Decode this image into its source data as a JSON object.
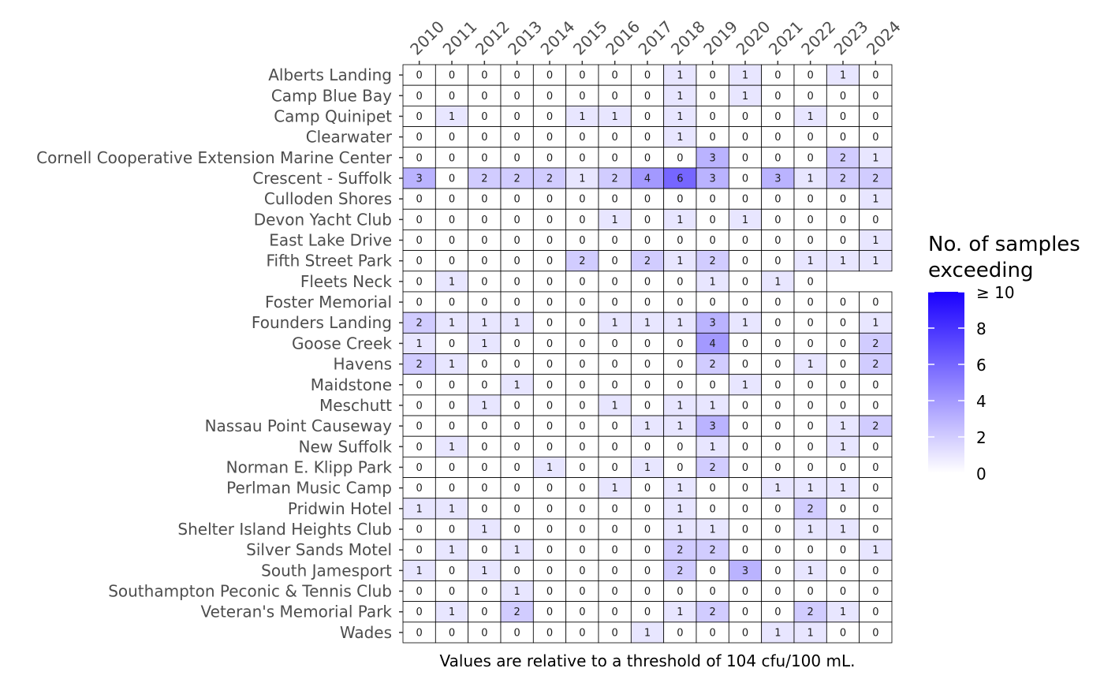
{
  "chart_data": {
    "type": "heatmap",
    "x": [
      "2010",
      "2011",
      "2012",
      "2013",
      "2014",
      "2015",
      "2016",
      "2017",
      "2018",
      "2019",
      "2020",
      "2021",
      "2022",
      "2023",
      "2024"
    ],
    "y": [
      "Alberts Landing",
      "Camp Blue Bay",
      "Camp Quinipet",
      "Clearwater",
      "Cornell Cooperative Extension Marine Center",
      "Crescent - Suffolk",
      "Culloden Shores",
      "Devon Yacht Club",
      "East Lake Drive",
      "Fifth Street Park",
      "Fleets Neck",
      "Foster Memorial",
      "Founders Landing",
      "Goose Creek",
      "Havens",
      "Maidstone",
      "Meschutt",
      "Nassau Point Causeway",
      "New Suffolk",
      "Norman E. Klipp Park",
      "Perlman Music Camp",
      "Pridwin Hotel",
      "Shelter Island Heights Club",
      "Silver Sands Motel",
      "South Jamesport",
      "Southampton Peconic & Tennis Club",
      "Veteran's Memorial Park",
      "Wades"
    ],
    "values": [
      [
        0,
        0,
        0,
        0,
        0,
        0,
        0,
        0,
        1,
        0,
        1,
        0,
        0,
        1,
        0
      ],
      [
        0,
        0,
        0,
        0,
        0,
        0,
        0,
        0,
        1,
        0,
        1,
        0,
        0,
        0,
        0
      ],
      [
        0,
        1,
        0,
        0,
        0,
        1,
        1,
        0,
        1,
        0,
        0,
        0,
        1,
        0,
        0
      ],
      [
        0,
        0,
        0,
        0,
        0,
        0,
        0,
        0,
        1,
        0,
        0,
        0,
        0,
        0,
        0
      ],
      [
        0,
        0,
        0,
        0,
        0,
        0,
        0,
        0,
        0,
        3,
        0,
        0,
        0,
        2,
        1
      ],
      [
        3,
        0,
        2,
        2,
        2,
        1,
        2,
        4,
        6,
        3,
        0,
        3,
        1,
        2,
        2
      ],
      [
        0,
        0,
        0,
        0,
        0,
        0,
        0,
        0,
        0,
        0,
        0,
        0,
        0,
        0,
        1
      ],
      [
        0,
        0,
        0,
        0,
        0,
        0,
        1,
        0,
        1,
        0,
        1,
        0,
        0,
        0,
        0
      ],
      [
        0,
        0,
        0,
        0,
        0,
        0,
        0,
        0,
        0,
        0,
        0,
        0,
        0,
        0,
        1
      ],
      [
        0,
        0,
        0,
        0,
        0,
        2,
        0,
        2,
        1,
        2,
        0,
        0,
        1,
        1,
        1
      ],
      [
        0,
        1,
        0,
        0,
        0,
        0,
        0,
        0,
        0,
        1,
        0,
        1,
        0,
        null,
        null
      ],
      [
        0,
        0,
        0,
        0,
        0,
        0,
        0,
        0,
        0,
        0,
        0,
        0,
        0,
        0,
        0
      ],
      [
        2,
        1,
        1,
        1,
        0,
        0,
        1,
        1,
        1,
        3,
        1,
        0,
        0,
        0,
        1
      ],
      [
        1,
        0,
        1,
        0,
        0,
        0,
        0,
        0,
        0,
        4,
        0,
        0,
        0,
        0,
        2
      ],
      [
        2,
        1,
        0,
        0,
        0,
        0,
        0,
        0,
        0,
        2,
        0,
        0,
        1,
        0,
        2
      ],
      [
        0,
        0,
        0,
        1,
        0,
        0,
        0,
        0,
        0,
        0,
        1,
        0,
        0,
        0,
        0
      ],
      [
        0,
        0,
        1,
        0,
        0,
        0,
        1,
        0,
        1,
        1,
        0,
        0,
        0,
        0,
        0
      ],
      [
        0,
        0,
        0,
        0,
        0,
        0,
        0,
        1,
        1,
        3,
        0,
        0,
        0,
        1,
        2
      ],
      [
        0,
        1,
        0,
        0,
        0,
        0,
        0,
        0,
        0,
        1,
        0,
        0,
        0,
        1,
        0
      ],
      [
        0,
        0,
        0,
        0,
        1,
        0,
        0,
        1,
        0,
        2,
        0,
        0,
        0,
        0,
        0
      ],
      [
        0,
        0,
        0,
        0,
        0,
        0,
        1,
        0,
        1,
        0,
        0,
        1,
        1,
        1,
        0
      ],
      [
        1,
        1,
        0,
        0,
        0,
        0,
        0,
        0,
        1,
        0,
        0,
        0,
        2,
        0,
        0
      ],
      [
        0,
        0,
        1,
        0,
        0,
        0,
        0,
        0,
        1,
        1,
        0,
        0,
        1,
        1,
        0
      ],
      [
        0,
        1,
        0,
        1,
        0,
        0,
        0,
        0,
        2,
        2,
        0,
        0,
        0,
        0,
        1
      ],
      [
        1,
        0,
        1,
        0,
        0,
        0,
        0,
        0,
        2,
        0,
        3,
        0,
        1,
        0,
        0
      ],
      [
        0,
        0,
        0,
        1,
        0,
        0,
        0,
        0,
        0,
        0,
        0,
        0,
        0,
        0,
        0
      ],
      [
        0,
        1,
        0,
        2,
        0,
        0,
        0,
        0,
        1,
        2,
        0,
        0,
        2,
        1,
        0
      ],
      [
        0,
        0,
        0,
        0,
        0,
        0,
        0,
        1,
        0,
        0,
        0,
        1,
        1,
        0,
        0
      ]
    ],
    "caption": "Values are relative to a threshold of 104 cfu/100 mL.",
    "legend": {
      "title_line1": "No. of samples",
      "title_line2": "exceeding",
      "ticks": [
        "0",
        "2",
        "4",
        "6",
        "8",
        "≥ 10"
      ],
      "range": [
        0,
        10
      ],
      "color_low": "#ffffff",
      "color_high": "#1a00ff"
    }
  }
}
